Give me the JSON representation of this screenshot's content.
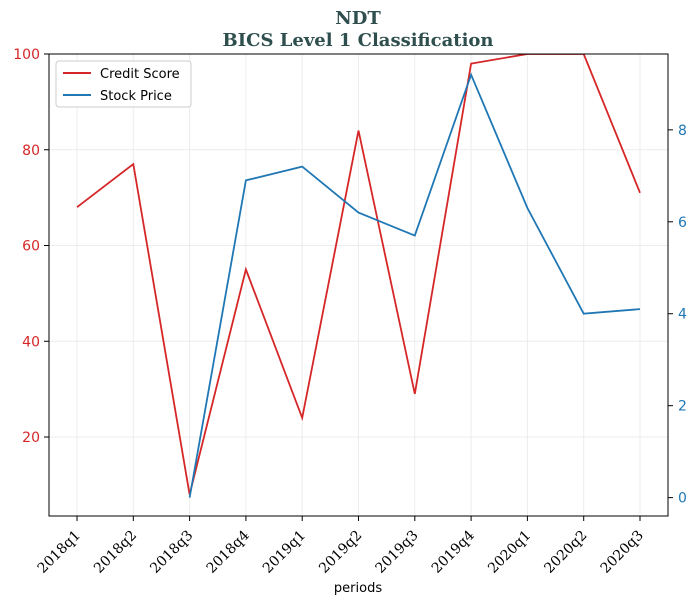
{
  "chart_data": {
    "type": "line",
    "title": "NDT",
    "subtitle": "BICS Level 1 Classification",
    "xlabel": "periods",
    "categories": [
      "2018q1",
      "2018q2",
      "2018q3",
      "2018q4",
      "2019q1",
      "2019q2",
      "2019q3",
      "2019q4",
      "2020q1",
      "2020q2",
      "2020q3"
    ],
    "series": [
      {
        "name": "Credit Score",
        "axis": "left",
        "color": "#d62728",
        "values": [
          68,
          77,
          8,
          55,
          24,
          84,
          29,
          98,
          100,
          100,
          71
        ]
      },
      {
        "name": "Stock Price",
        "axis": "right",
        "color": "#1f77b4",
        "values": [
          null,
          null,
          0.0,
          6.9,
          7.2,
          6.2,
          5.7,
          9.2,
          6.3,
          4.0,
          4.1
        ]
      }
    ],
    "left_axis": {
      "ylim": [
        3.5,
        100
      ],
      "ticks": [
        20,
        40,
        60,
        80,
        100
      ],
      "color": "#d62728"
    },
    "right_axis": {
      "ylim": [
        -0.4,
        9.65
      ],
      "ticks": [
        0,
        2,
        4,
        6,
        8
      ],
      "color": "#1f77b4"
    },
    "grid": true,
    "legend": "top-left"
  }
}
